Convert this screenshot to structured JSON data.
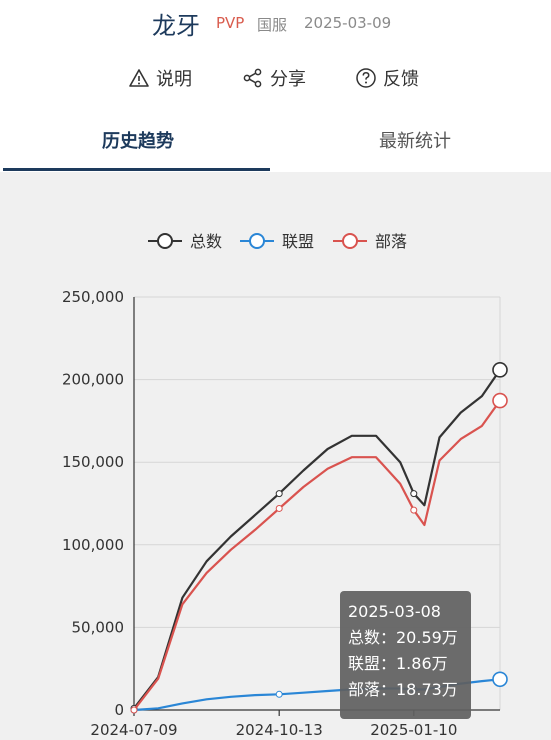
{
  "header": {
    "title": "龙牙",
    "pvp_tag": "PVP",
    "server_tag": "国服",
    "date": "2025-03-09"
  },
  "actions": {
    "explain": "说明",
    "share": "分享",
    "feedback": "反馈"
  },
  "tabs": [
    {
      "label": "历史趋势",
      "active": true
    },
    {
      "label": "最新统计",
      "active": false
    }
  ],
  "colors": {
    "total": "#333333",
    "alliance": "#2a86d6",
    "horde": "#d9534f",
    "accent": "#1d3a5c"
  },
  "chart_data": {
    "type": "line",
    "legend": [
      "总数",
      "联盟",
      "部落"
    ],
    "legend_position": "top-center",
    "grid": true,
    "ylim": [
      0,
      250000
    ],
    "y_ticks": [
      "0",
      "50,000",
      "100,000",
      "150,000",
      "200,000",
      "250,000"
    ],
    "x_ticks": [
      "2024-07-09",
      "2024-10-13",
      "2025-01-10"
    ],
    "x": [
      "2024-07-09",
      "2024-07-25",
      "2024-08-10",
      "2024-08-26",
      "2024-09-11",
      "2024-09-27",
      "2024-10-13",
      "2024-10-29",
      "2024-11-14",
      "2024-11-30",
      "2024-12-16",
      "2025-01-01",
      "2025-01-10",
      "2025-01-17",
      "2025-01-27",
      "2025-02-10",
      "2025-02-24",
      "2025-03-08"
    ],
    "series": [
      {
        "name": "总数",
        "values": [
          1000,
          20000,
          68000,
          90000,
          105000,
          118000,
          131000,
          145000,
          158000,
          166000,
          166000,
          150000,
          131000,
          124000,
          165000,
          180000,
          190000,
          205900
        ]
      },
      {
        "name": "联盟",
        "values": [
          0,
          1000,
          4000,
          6500,
          8000,
          9000,
          9500,
          10500,
          11500,
          12500,
          13000,
          13000,
          12500,
          12500,
          14000,
          16000,
          17500,
          18600
        ]
      },
      {
        "name": "部落",
        "values": [
          0,
          19000,
          64000,
          83000,
          97000,
          109000,
          122000,
          135000,
          146000,
          153000,
          153000,
          137000,
          121000,
          112000,
          151000,
          164000,
          172000,
          187300
        ]
      }
    ],
    "tooltip": {
      "date": "2025-03-08",
      "total": "总数：20.59万",
      "alliance": "联盟：1.86万",
      "horde": "部落：18.73万"
    }
  }
}
